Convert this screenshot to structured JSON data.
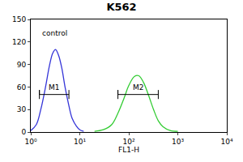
{
  "chart_data": {
    "type": "line",
    "title": "K562",
    "x_label": "FL1-H",
    "log": "x",
    "xlim": [
      1,
      10000
    ],
    "xticks": [
      {
        "value": 1,
        "label": "10⁰"
      },
      {
        "value": 10,
        "label": "10¹"
      },
      {
        "value": 100,
        "label": "10²"
      },
      {
        "value": 1000,
        "label": "10³"
      },
      {
        "value": 10000,
        "label": "10⁴"
      }
    ],
    "ylim": [
      0,
      150
    ],
    "yticks": [
      0,
      30,
      60,
      90,
      120,
      150
    ],
    "grid": false,
    "series": [
      {
        "name": "control",
        "color": "#3535d8",
        "x": [
          1,
          1.3,
          1.6,
          2,
          2.4,
          2.8,
          3.2,
          3.7,
          4.3,
          5,
          6,
          7,
          8.5,
          10,
          12
        ],
        "values": [
          2,
          10,
          30,
          60,
          88,
          105,
          110,
          102,
          85,
          60,
          35,
          18,
          8,
          3,
          1
        ]
      },
      {
        "color": "#33cc33",
        "x": [
          20,
          30,
          45,
          60,
          80,
          100,
          130,
          160,
          200,
          250,
          320,
          400,
          500,
          700,
          1000
        ],
        "values": [
          1,
          3,
          10,
          25,
          45,
          62,
          74,
          75,
          66,
          50,
          30,
          15,
          7,
          2,
          1
        ]
      }
    ],
    "annotations": [
      {
        "text": "control",
        "x": 1.6,
        "y": 132
      }
    ],
    "gates": [
      {
        "label": "M1",
        "x": [
          1.5,
          6
        ],
        "y": 50
      },
      {
        "label": "M2",
        "x": [
          60,
          400
        ],
        "y": 50
      }
    ]
  }
}
